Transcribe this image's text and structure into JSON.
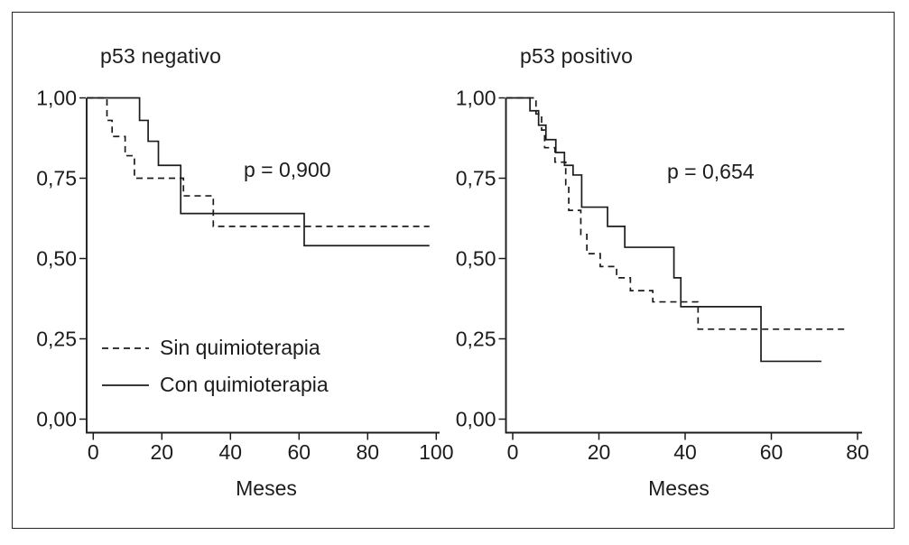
{
  "figure": {
    "background": "#ffffff",
    "border_color": "#242424",
    "ink": "#1c1c1c"
  },
  "chart_data": [
    {
      "type": "line",
      "subtype": "kaplan-meier-step",
      "title": "p53 negativo",
      "annotation": "p = 0,900",
      "xlabel": "Meses",
      "ylabel": "",
      "xlim": [
        0,
        100
      ],
      "ylim": [
        0,
        1
      ],
      "xticks": [
        0,
        20,
        40,
        60,
        80,
        100
      ],
      "yticks": [
        {
          "label": "0,00",
          "value": 0
        },
        {
          "label": "0,25",
          "value": 0.25
        },
        {
          "label": "0,50",
          "value": 0.5
        },
        {
          "label": "0,75",
          "value": 0.75
        },
        {
          "label": "1,00",
          "value": 1
        }
      ],
      "grid": false,
      "legend_position": "lower-left-inside",
      "series": [
        {
          "name": "Sin quimioterapia",
          "line_style": "dashed",
          "start": [
            0,
            1.0
          ],
          "drops": [
            [
              4,
              0.93
            ],
            [
              5.5,
              0.88
            ],
            [
              9.3,
              0.82
            ],
            [
              12,
              0.75
            ],
            [
              26.3,
              0.695
            ],
            [
              35,
              0.6
            ]
          ],
          "end_month": 98
        },
        {
          "name": "Con quimioterapia",
          "line_style": "solid",
          "start": [
            0,
            1.0
          ],
          "drops": [
            [
              13.5,
              0.93
            ],
            [
              16,
              0.865
            ],
            [
              19,
              0.79
            ],
            [
              25.5,
              0.64
            ],
            [
              61.5,
              0.54
            ]
          ],
          "end_month": 98
        }
      ]
    },
    {
      "type": "line",
      "subtype": "kaplan-meier-step",
      "title": "p53 positivo",
      "annotation": "p = 0,654",
      "xlabel": "Meses",
      "ylabel": "",
      "xlim": [
        0,
        80
      ],
      "ylim": [
        0,
        1
      ],
      "xticks": [
        0,
        20,
        40,
        60,
        80
      ],
      "yticks": [
        {
          "label": "0,00",
          "value": 0
        },
        {
          "label": "0,25",
          "value": 0.25
        },
        {
          "label": "0,50",
          "value": 0.5
        },
        {
          "label": "0,75",
          "value": 0.75
        },
        {
          "label": "1,00",
          "value": 1
        }
      ],
      "grid": false,
      "legend_position": "none",
      "series": [
        {
          "name": "Sin quimioterapia",
          "line_style": "dashed",
          "start": [
            0,
            1.0
          ],
          "drops": [
            [
              5.4,
              0.95
            ],
            [
              6.7,
              0.9
            ],
            [
              7.4,
              0.845
            ],
            [
              9.8,
              0.8
            ],
            [
              12.3,
              0.73
            ],
            [
              13,
              0.65
            ],
            [
              15.8,
              0.575
            ],
            [
              17.2,
              0.515
            ],
            [
              20.3,
              0.475
            ],
            [
              24.1,
              0.44
            ],
            [
              27.3,
              0.4
            ],
            [
              32.5,
              0.365
            ],
            [
              43,
              0.28
            ]
          ],
          "end_month": 77
        },
        {
          "name": "Con quimioterapia",
          "line_style": "solid",
          "start": [
            0,
            1.0
          ],
          "drops": [
            [
              4,
              0.96
            ],
            [
              6,
              0.915
            ],
            [
              7.7,
              0.87
            ],
            [
              10,
              0.83
            ],
            [
              12,
              0.79
            ],
            [
              14,
              0.76
            ],
            [
              16,
              0.66
            ],
            [
              22,
              0.6
            ],
            [
              26,
              0.535
            ],
            [
              37.4,
              0.44
            ],
            [
              39,
              0.35
            ],
            [
              57.6,
              0.18
            ]
          ],
          "end_month": 71.6
        }
      ]
    }
  ],
  "legend": {
    "entries": [
      {
        "label": "Sin quimioterapia",
        "line_style": "dashed"
      },
      {
        "label": "Con quimioterapia",
        "line_style": "solid"
      }
    ]
  }
}
